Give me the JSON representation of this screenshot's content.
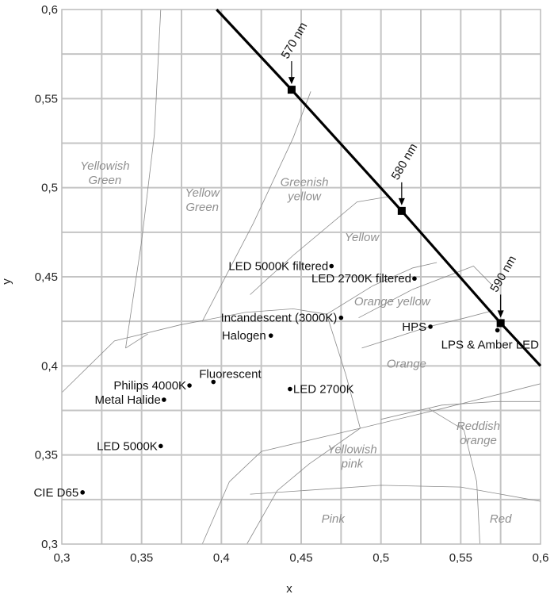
{
  "chart_data": {
    "type": "scatter",
    "title": "",
    "xlabel": "x",
    "ylabel": "y",
    "xlim": [
      0.3,
      0.6
    ],
    "ylim": [
      0.3,
      0.6
    ],
    "grid": true,
    "x_ticks": [
      "0,3",
      "0,35",
      "0,4",
      "0,45",
      "0,5",
      "0,55",
      "0,6"
    ],
    "y_ticks": [
      "0,3",
      "0,35",
      "0,4",
      "0,45",
      "0,5",
      "0,55",
      "0,6"
    ],
    "spectral_locus": [
      {
        "x": 0.397,
        "y": 0.6
      },
      {
        "x": 0.444,
        "y": 0.555
      },
      {
        "x": 0.513,
        "y": 0.487
      },
      {
        "x": 0.575,
        "y": 0.424
      },
      {
        "x": 0.6,
        "y": 0.4
      }
    ],
    "wavelength_markers": [
      {
        "label": "570 nm",
        "x": 0.444,
        "y": 0.555
      },
      {
        "label": "580 nm",
        "x": 0.513,
        "y": 0.487
      },
      {
        "label": "590 nm",
        "x": 0.575,
        "y": 0.424
      }
    ],
    "sources": [
      {
        "label": "LED 5000K filtered",
        "x": 0.469,
        "y": 0.456
      },
      {
        "label": "LED 2700K filtered",
        "x": 0.521,
        "y": 0.449
      },
      {
        "label": "Incandescent (3000K)",
        "x": 0.475,
        "y": 0.427
      },
      {
        "label": "HPS",
        "x": 0.531,
        "y": 0.422
      },
      {
        "label": "LPS & Amber LED",
        "x": 0.573,
        "y": 0.42
      },
      {
        "label": "Halogen",
        "x": 0.431,
        "y": 0.417
      },
      {
        "label": "Fluorescent",
        "x": 0.395,
        "y": 0.391
      },
      {
        "label": "Philips 4000K",
        "x": 0.38,
        "y": 0.389
      },
      {
        "label": "LED 2700K",
        "x": 0.443,
        "y": 0.387
      },
      {
        "label": "Metal Halide",
        "x": 0.364,
        "y": 0.381
      },
      {
        "label": "LED 5000K",
        "x": 0.362,
        "y": 0.355
      },
      {
        "label": "CIE D65",
        "x": 0.313,
        "y": 0.329
      }
    ],
    "region_labels": [
      {
        "lines": [
          "Yellowish",
          "Green"
        ],
        "x": 0.327,
        "y": 0.51
      },
      {
        "lines": [
          "Yellow",
          "Green"
        ],
        "x": 0.388,
        "y": 0.495
      },
      {
        "lines": [
          "Greenish",
          "yellow"
        ],
        "x": 0.452,
        "y": 0.501
      },
      {
        "lines": [
          "Yellow"
        ],
        "x": 0.488,
        "y": 0.47
      },
      {
        "lines": [
          "Orange yellow"
        ],
        "x": 0.507,
        "y": 0.434
      },
      {
        "lines": [
          "Orange"
        ],
        "x": 0.516,
        "y": 0.399
      },
      {
        "lines": [
          "Reddish",
          "orange"
        ],
        "x": 0.561,
        "y": 0.364
      },
      {
        "lines": [
          "Yellowish",
          "pink"
        ],
        "x": 0.482,
        "y": 0.351
      },
      {
        "lines": [
          "Pink"
        ],
        "x": 0.47,
        "y": 0.312
      },
      {
        "lines": [
          "Red"
        ],
        "x": 0.575,
        "y": 0.312
      }
    ],
    "boundaries": [
      [
        [
          0.34,
          0.41
        ],
        [
          0.35,
          0.47
        ],
        [
          0.358,
          0.53
        ],
        [
          0.362,
          0.6
        ]
      ],
      [
        [
          0.34,
          0.41
        ],
        [
          0.354,
          0.418
        ]
      ],
      [
        [
          0.3,
          0.385
        ],
        [
          0.333,
          0.414
        ],
        [
          0.374,
          0.423
        ],
        [
          0.415,
          0.43
        ]
      ],
      [
        [
          0.415,
          0.43
        ],
        [
          0.445,
          0.432
        ],
        [
          0.466,
          0.429
        ]
      ],
      [
        [
          0.388,
          0.425
        ],
        [
          0.42,
          0.48
        ],
        [
          0.445,
          0.528
        ],
        [
          0.456,
          0.554
        ]
      ],
      [
        [
          0.418,
          0.44
        ],
        [
          0.445,
          0.462
        ],
        [
          0.485,
          0.492
        ],
        [
          0.505,
          0.495
        ]
      ],
      [
        [
          0.466,
          0.429
        ],
        [
          0.495,
          0.445
        ],
        [
          0.52,
          0.455
        ],
        [
          0.535,
          0.458
        ]
      ],
      [
        [
          0.486,
          0.427
        ],
        [
          0.52,
          0.443
        ],
        [
          0.558,
          0.456
        ],
        [
          0.57,
          0.445
        ]
      ],
      [
        [
          0.488,
          0.41
        ],
        [
          0.53,
          0.422
        ],
        [
          0.553,
          0.427
        ],
        [
          0.57,
          0.431
        ]
      ],
      [
        [
          0.466,
          0.429
        ],
        [
          0.478,
          0.395
        ],
        [
          0.487,
          0.365
        ]
      ],
      [
        [
          0.487,
          0.365
        ],
        [
          0.455,
          0.345
        ],
        [
          0.435,
          0.33
        ],
        [
          0.416,
          0.3
        ]
      ],
      [
        [
          0.388,
          0.3
        ],
        [
          0.405,
          0.335
        ],
        [
          0.425,
          0.352
        ],
        [
          0.487,
          0.365
        ]
      ],
      [
        [
          0.487,
          0.365
        ],
        [
          0.538,
          0.376
        ],
        [
          0.6,
          0.39
        ]
      ],
      [
        [
          0.5,
          0.37
        ],
        [
          0.538,
          0.378
        ],
        [
          0.572,
          0.38
        ],
        [
          0.6,
          0.38
        ]
      ],
      [
        [
          0.53,
          0.376
        ],
        [
          0.552,
          0.364
        ],
        [
          0.56,
          0.335
        ],
        [
          0.562,
          0.3
        ]
      ],
      [
        [
          0.418,
          0.328
        ],
        [
          0.5,
          0.333
        ],
        [
          0.55,
          0.332
        ],
        [
          0.6,
          0.324
        ]
      ]
    ]
  }
}
